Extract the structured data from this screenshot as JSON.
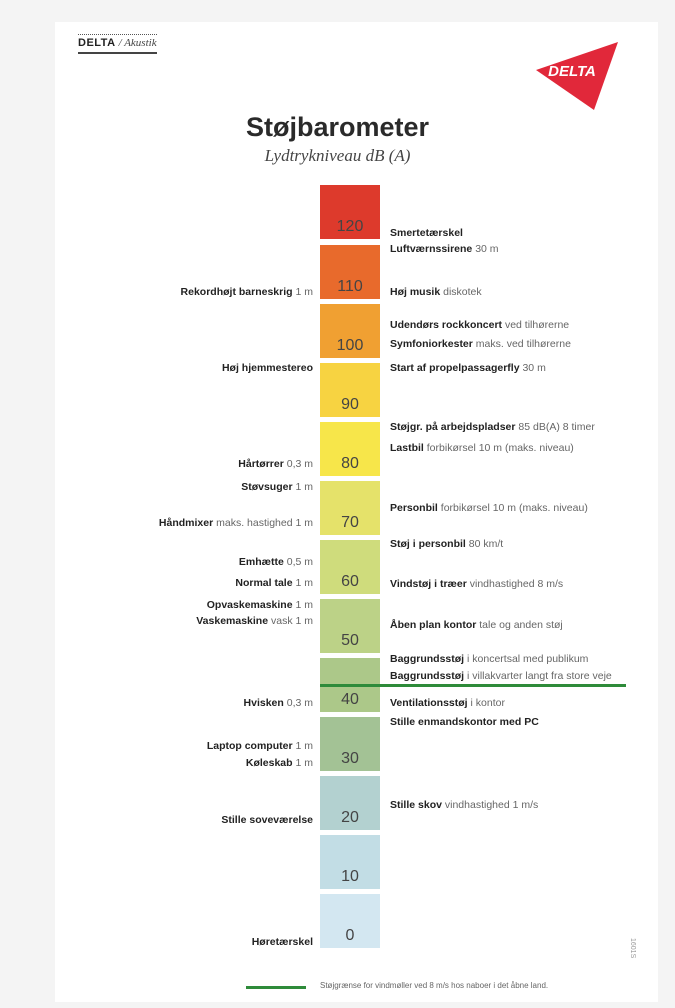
{
  "brand": {
    "name": "DELTA",
    "division": "Akustik"
  },
  "logo": {
    "text": "DELTA",
    "color": "#e1283a"
  },
  "title": "Støjbarometer",
  "subtitle": "Lydtrykniveau dB (A)",
  "scale": [
    {
      "value": "120",
      "color": "#dd3a2c"
    },
    {
      "value": "110",
      "color": "#e86a2c"
    },
    {
      "value": "100",
      "color": "#f0a032"
    },
    {
      "value": "90",
      "color": "#f7d341"
    },
    {
      "value": "80",
      "color": "#f7e64a"
    },
    {
      "value": "70",
      "color": "#e5e26a"
    },
    {
      "value": "60",
      "color": "#cfdc7c"
    },
    {
      "value": "50",
      "color": "#bcd287"
    },
    {
      "value": "40",
      "color": "#acc889"
    },
    {
      "value": "30",
      "color": "#a3c295"
    },
    {
      "value": "20",
      "color": "#b3d1d0"
    },
    {
      "value": "10",
      "color": "#c2dde5"
    },
    {
      "value": "0",
      "color": "#d3e7f1"
    }
  ],
  "right_labels": [
    {
      "bold": "Smertetærskel",
      "detail": ""
    },
    {
      "bold": "Luftværnssirene",
      "detail": "30 m"
    },
    {
      "bold": "Høj musik",
      "detail": "diskotek"
    },
    {
      "bold": "Udendørs rockkoncert",
      "detail": "ved tilhørerne"
    },
    {
      "bold": "Symfoniorkester",
      "detail": "maks. ved tilhørerne"
    },
    {
      "bold": "Start af propelpassagerfly",
      "detail": "30 m"
    },
    {
      "bold": "Støjgr. på arbejdspladser",
      "detail": "85 dB(A) 8 timer"
    },
    {
      "bold": "Lastbil",
      "detail": "forbikørsel 10 m (maks. niveau)"
    },
    {
      "bold": "Personbil",
      "detail": "forbikørsel 10 m (maks. niveau)"
    },
    {
      "bold": "Støj i personbil",
      "detail": "80 km/t"
    },
    {
      "bold": "Vindstøj i træer",
      "detail": "vindhastighed 8 m/s"
    },
    {
      "bold": "Åben plan kontor",
      "detail": "tale og anden støj"
    },
    {
      "bold": "Baggrundsstøj",
      "detail": "i koncertsal med publikum"
    },
    {
      "bold": "Baggrundsstøj",
      "detail": "i villakvarter langt fra store veje"
    },
    {
      "bold": "Ventilationsstøj",
      "detail": "i kontor"
    },
    {
      "bold": "Stille enmandskontor med PC",
      "detail": ""
    },
    {
      "bold": "Stille skov",
      "detail": "vindhastighed 1 m/s"
    }
  ],
  "left_labels": [
    {
      "bold": "Rekordhøjt barneskrig",
      "detail": "1 m"
    },
    {
      "bold": "Høj hjemmestereo",
      "detail": ""
    },
    {
      "bold": "Hårtørrer",
      "detail": "0,3 m"
    },
    {
      "bold": "Støvsuger",
      "detail": "1 m"
    },
    {
      "bold": "Håndmixer",
      "detail": "maks. hastighed 1 m"
    },
    {
      "bold": "Emhætte",
      "detail": "0,5 m"
    },
    {
      "bold": "Normal tale",
      "detail": "1 m"
    },
    {
      "bold": "Opvaskemaskine",
      "detail": "1 m"
    },
    {
      "bold": "Vaskemaskine",
      "detail": "vask 1 m"
    },
    {
      "bold": "Hvisken",
      "detail": "0,3 m"
    },
    {
      "bold": "Laptop computer",
      "detail": "1 m"
    },
    {
      "bold": "Køleskab",
      "detail": "1 m"
    },
    {
      "bold": "Stille soveværelse",
      "detail": ""
    },
    {
      "bold": "Høretærskel",
      "detail": ""
    }
  ],
  "legend": {
    "text": "Støjgrænse for vindmøller ved 8 m/s hos naboer i det åbne land.",
    "color": "#2e8b3a"
  },
  "version_code": "1601S"
}
